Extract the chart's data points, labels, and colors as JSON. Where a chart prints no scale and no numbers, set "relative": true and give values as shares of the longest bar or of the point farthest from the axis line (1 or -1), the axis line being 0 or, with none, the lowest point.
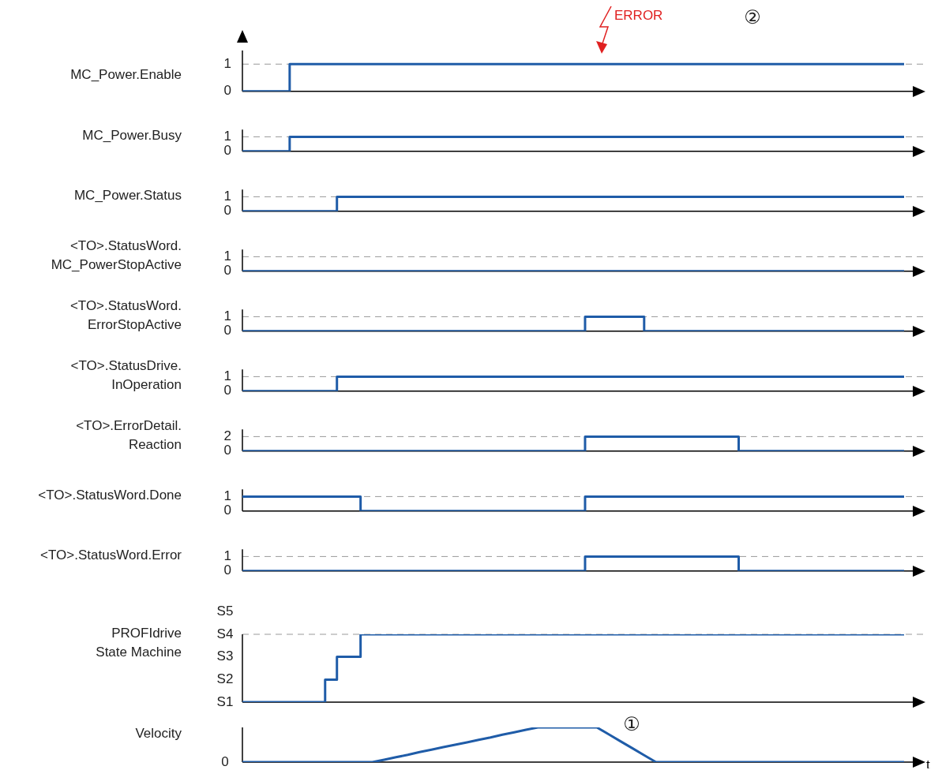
{
  "chart_data": [
    {
      "type": "step",
      "ylabel": "MC_Power.Enable",
      "categories": [
        null,
        null,
        null,
        null,
        null,
        null,
        null,
        null,
        null,
        null,
        null,
        null,
        null,
        null,
        null,
        null,
        null,
        null,
        null,
        null,
        null,
        null,
        null,
        null,
        null,
        null,
        null,
        null,
        null,
        null,
        null,
        null,
        null,
        null,
        null,
        null,
        null,
        null,
        null,
        null,
        null,
        null,
        null,
        null,
        null,
        null,
        null,
        null,
        null,
        null,
        null,
        null,
        null,
        null,
        null,
        null,
        null
      ],
      "values": [
        0,
        0,
        0,
        0,
        0,
        1,
        1,
        1,
        1,
        1,
        1,
        1,
        1,
        1,
        1,
        1,
        1,
        1,
        1,
        1,
        1,
        1,
        1,
        1,
        1,
        1,
        1,
        1,
        1,
        1,
        1,
        1,
        1,
        1,
        1,
        1,
        1,
        1,
        1,
        1,
        1,
        1,
        1,
        1,
        1,
        1,
        1,
        1,
        1,
        1,
        1,
        1,
        1,
        1,
        1,
        1,
        1
      ],
      "color": "#1f5ca8",
      "ylim": [
        0,
        1.5
      ],
      "yticks": [
        0,
        1
      ],
      "ref_lines": [
        {
          "axis": "y",
          "value": 1,
          "line_style": "dashed"
        }
      ],
      "annotations": [
        "ERROR",
        "②"
      ]
    },
    {
      "type": "step",
      "ylabel": "MC_Power.Busy",
      "categories": [
        null,
        null,
        null,
        null,
        null,
        null,
        null,
        null,
        null,
        null,
        null,
        null,
        null,
        null,
        null,
        null,
        null,
        null,
        null,
        null,
        null,
        null,
        null,
        null,
        null,
        null,
        null,
        null,
        null,
        null,
        null,
        null,
        null,
        null,
        null,
        null,
        null,
        null,
        null,
        null,
        null,
        null,
        null,
        null,
        null,
        null,
        null,
        null,
        null,
        null,
        null,
        null,
        null,
        null,
        null,
        null,
        null
      ],
      "values": [
        0,
        0,
        0,
        0,
        0,
        1,
        1,
        1,
        1,
        1,
        1,
        1,
        1,
        1,
        1,
        1,
        1,
        1,
        1,
        1,
        1,
        1,
        1,
        1,
        1,
        1,
        1,
        1,
        1,
        1,
        1,
        1,
        1,
        1,
        1,
        1,
        1,
        1,
        1,
        1,
        1,
        1,
        1,
        1,
        1,
        1,
        1,
        1,
        1,
        1,
        1,
        1,
        1,
        1,
        1,
        1,
        1
      ],
      "color": "#1f5ca8",
      "ylim": [
        0,
        1.5
      ],
      "yticks": [
        0,
        1
      ],
      "ref_lines": [
        {
          "axis": "y",
          "value": 1,
          "line_style": "dashed"
        }
      ]
    },
    {
      "type": "step",
      "ylabel": "MC_Power.Status",
      "categories": [
        null,
        null,
        null,
        null,
        null,
        null,
        null,
        null,
        null,
        null,
        null,
        null,
        null,
        null,
        null,
        null,
        null,
        null,
        null,
        null,
        null,
        null,
        null,
        null,
        null,
        null,
        null,
        null,
        null,
        null,
        null,
        null,
        null,
        null,
        null,
        null,
        null,
        null,
        null,
        null,
        null,
        null,
        null,
        null,
        null,
        null,
        null,
        null,
        null,
        null,
        null,
        null,
        null,
        null,
        null,
        null,
        null
      ],
      "values": [
        0,
        0,
        0,
        0,
        0,
        0,
        0,
        0,
        0,
        1,
        1,
        1,
        1,
        1,
        1,
        1,
        1,
        1,
        1,
        1,
        1,
        1,
        1,
        1,
        1,
        1,
        1,
        1,
        1,
        1,
        1,
        1,
        1,
        1,
        1,
        1,
        1,
        1,
        1,
        1,
        1,
        1,
        1,
        1,
        1,
        1,
        1,
        1,
        1,
        1,
        1,
        1,
        1,
        1,
        1,
        1,
        1
      ],
      "color": "#1f5ca8",
      "ylim": [
        0,
        1.5
      ],
      "yticks": [
        0,
        1
      ],
      "ref_lines": [
        {
          "axis": "y",
          "value": 1,
          "line_style": "dashed"
        }
      ]
    },
    {
      "type": "step",
      "ylabel": "<TO>.StatusWord.\nMC_PowerStopActive",
      "categories": [
        null,
        null,
        null,
        null,
        null,
        null,
        null,
        null,
        null,
        null,
        null,
        null,
        null,
        null,
        null,
        null,
        null,
        null,
        null,
        null,
        null,
        null,
        null,
        null,
        null,
        null,
        null,
        null,
        null,
        null,
        null,
        null,
        null,
        null,
        null,
        null,
        null,
        null,
        null,
        null,
        null,
        null,
        null,
        null,
        null,
        null,
        null,
        null,
        null,
        null,
        null,
        null,
        null,
        null,
        null,
        null,
        null
      ],
      "values": [
        0,
        0,
        0,
        0,
        0,
        0,
        0,
        0,
        0,
        0,
        0,
        0,
        0,
        0,
        0,
        0,
        0,
        0,
        0,
        0,
        0,
        0,
        0,
        0,
        0,
        0,
        0,
        0,
        0,
        0,
        0,
        0,
        0,
        0,
        0,
        0,
        0,
        0,
        0,
        0,
        0,
        0,
        0,
        0,
        0,
        0,
        0,
        0,
        0,
        0,
        0,
        0,
        0,
        0,
        0,
        0,
        0
      ],
      "color": "#1f5ca8",
      "ylim": [
        0,
        1.5
      ],
      "yticks": [
        0,
        1
      ],
      "ref_lines": [
        {
          "axis": "y",
          "value": 1,
          "line_style": "dashed"
        }
      ]
    },
    {
      "type": "step",
      "ylabel": "<TO>.StatusWord.\nErrorStopActive",
      "categories": [
        null,
        null,
        null,
        null,
        null,
        null,
        null,
        null,
        null,
        null,
        null,
        null,
        null,
        null,
        null,
        null,
        null,
        null,
        null,
        null,
        null,
        null,
        null,
        null,
        null,
        null,
        null,
        null,
        null,
        null,
        null,
        null,
        null,
        null,
        null,
        null,
        null,
        null,
        null,
        null,
        null,
        null,
        null,
        null,
        null,
        null,
        null,
        null,
        null,
        null,
        null,
        null,
        null,
        null,
        null,
        null,
        null
      ],
      "values": [
        0,
        0,
        0,
        0,
        0,
        0,
        0,
        0,
        0,
        0,
        0,
        0,
        0,
        0,
        0,
        0,
        0,
        0,
        0,
        0,
        0,
        0,
        0,
        0,
        0,
        0,
        0,
        0,
        0,
        0,
        1,
        1,
        1,
        1,
        1,
        0,
        0,
        0,
        0,
        0,
        0,
        0,
        0,
        0,
        0,
        0,
        0,
        0,
        0,
        0,
        0,
        0,
        0,
        0,
        0,
        0,
        0
      ],
      "color": "#1f5ca8",
      "ylim": [
        0,
        1.5
      ],
      "yticks": [
        0,
        1
      ],
      "ref_lines": [
        {
          "axis": "y",
          "value": 1,
          "line_style": "dashed"
        }
      ]
    },
    {
      "type": "step",
      "ylabel": "<TO>.StatusDrive.\nInOperation",
      "categories": [
        null,
        null,
        null,
        null,
        null,
        null,
        null,
        null,
        null,
        null,
        null,
        null,
        null,
        null,
        null,
        null,
        null,
        null,
        null,
        null,
        null,
        null,
        null,
        null,
        null,
        null,
        null,
        null,
        null,
        null,
        null,
        null,
        null,
        null,
        null,
        null,
        null,
        null,
        null,
        null,
        null,
        null,
        null,
        null,
        null,
        null,
        null,
        null,
        null,
        null,
        null,
        null,
        null,
        null,
        null,
        null,
        null
      ],
      "values": [
        0,
        0,
        0,
        0,
        0,
        0,
        0,
        0,
        0,
        1,
        1,
        1,
        1,
        1,
        1,
        1,
        1,
        1,
        1,
        1,
        1,
        1,
        1,
        1,
        1,
        1,
        1,
        1,
        1,
        1,
        1,
        1,
        1,
        1,
        1,
        1,
        1,
        1,
        1,
        1,
        1,
        1,
        1,
        1,
        1,
        1,
        1,
        1,
        1,
        1,
        1,
        1,
        1,
        1,
        1,
        1,
        1
      ],
      "color": "#1f5ca8",
      "ylim": [
        0,
        1.5
      ],
      "yticks": [
        0,
        1
      ],
      "ref_lines": [
        {
          "axis": "y",
          "value": 1,
          "line_style": "dashed"
        }
      ]
    },
    {
      "type": "step",
      "ylabel": "<TO>.ErrorDetail.\nReaction",
      "categories": [
        null,
        null,
        null,
        null,
        null,
        null,
        null,
        null,
        null,
        null,
        null,
        null,
        null,
        null,
        null,
        null,
        null,
        null,
        null,
        null,
        null,
        null,
        null,
        null,
        null,
        null,
        null,
        null,
        null,
        null,
        null,
        null,
        null,
        null,
        null,
        null,
        null,
        null,
        null,
        null,
        null,
        null,
        null,
        null,
        null,
        null,
        null,
        null,
        null,
        null,
        null,
        null,
        null,
        null,
        null,
        null,
        null
      ],
      "values": [
        0,
        0,
        0,
        0,
        0,
        0,
        0,
        0,
        0,
        0,
        0,
        0,
        0,
        0,
        0,
        0,
        0,
        0,
        0,
        0,
        0,
        0,
        0,
        0,
        0,
        0,
        0,
        0,
        0,
        0,
        2,
        2,
        2,
        2,
        2,
        2,
        2,
        2,
        2,
        2,
        2,
        2,
        2,
        0,
        0,
        0,
        0,
        0,
        0,
        0,
        0,
        0,
        0,
        0,
        0,
        0,
        0
      ],
      "color": "#1f5ca8",
      "ylim": [
        0,
        3
      ],
      "yticks": [
        0,
        2
      ],
      "ref_lines": [
        {
          "axis": "y",
          "value": 2,
          "line_style": "dashed"
        }
      ]
    },
    {
      "type": "step",
      "ylabel": "<TO>.StatusWord.Done",
      "categories": [
        null,
        null,
        null,
        null,
        null,
        null,
        null,
        null,
        null,
        null,
        null,
        null,
        null,
        null,
        null,
        null,
        null,
        null,
        null,
        null,
        null,
        null,
        null,
        null,
        null,
        null,
        null,
        null,
        null,
        null,
        null,
        null,
        null,
        null,
        null,
        null,
        null,
        null,
        null,
        null,
        null,
        null,
        null,
        null,
        null,
        null,
        null,
        null,
        null,
        null,
        null,
        null,
        null,
        null,
        null,
        null,
        null
      ],
      "values": [
        1,
        1,
        1,
        1,
        1,
        1,
        1,
        1,
        1,
        1,
        1,
        0,
        0,
        0,
        0,
        0,
        0,
        0,
        0,
        0,
        0,
        0,
        0,
        0,
        0,
        0,
        0,
        0,
        0,
        0,
        1,
        1,
        1,
        1,
        1,
        1,
        1,
        1,
        1,
        1,
        1,
        1,
        1,
        1,
        1,
        1,
        1,
        1,
        1,
        1,
        1,
        1,
        1,
        1,
        1,
        1,
        1
      ],
      "color": "#1f5ca8",
      "ylim": [
        0,
        1.5
      ],
      "yticks": [
        0,
        1
      ],
      "ref_lines": [
        {
          "axis": "y",
          "value": 1,
          "line_style": "dashed"
        }
      ]
    },
    {
      "type": "step",
      "ylabel": "<TO>.StatusWord.Error",
      "categories": [
        null,
        null,
        null,
        null,
        null,
        null,
        null,
        null,
        null,
        null,
        null,
        null,
        null,
        null,
        null,
        null,
        null,
        null,
        null,
        null,
        null,
        null,
        null,
        null,
        null,
        null,
        null,
        null,
        null,
        null,
        null,
        null,
        null,
        null,
        null,
        null,
        null,
        null,
        null,
        null,
        null,
        null,
        null,
        null,
        null,
        null,
        null,
        null,
        null,
        null,
        null,
        null,
        null,
        null,
        null,
        null,
        null
      ],
      "values": [
        0,
        0,
        0,
        0,
        0,
        0,
        0,
        0,
        0,
        0,
        0,
        0,
        0,
        0,
        0,
        0,
        0,
        0,
        0,
        0,
        0,
        0,
        0,
        0,
        0,
        0,
        0,
        0,
        0,
        0,
        1,
        1,
        1,
        1,
        1,
        1,
        1,
        1,
        1,
        1,
        1,
        1,
        1,
        0,
        0,
        0,
        0,
        0,
        0,
        0,
        0,
        0,
        0,
        0,
        0,
        0,
        0
      ],
      "color": "#1f5ca8",
      "ylim": [
        0,
        1.5
      ],
      "yticks": [
        0,
        1
      ],
      "ref_lines": [
        {
          "axis": "y",
          "value": 1,
          "line_style": "dashed"
        }
      ]
    },
    {
      "type": "step",
      "ylabel": "PROFIdrive\nState Machine",
      "categories": [
        null,
        null,
        null,
        null,
        null,
        null,
        null,
        null,
        null,
        null,
        null,
        null,
        null,
        null,
        null,
        null,
        null,
        null,
        null,
        null,
        null,
        null,
        null,
        null,
        null,
        null,
        null,
        null,
        null,
        null,
        null,
        null,
        null,
        null,
        null,
        null,
        null,
        null,
        null,
        null,
        null,
        null,
        null,
        null,
        null,
        null,
        null,
        null,
        null,
        null,
        null,
        null,
        null,
        null,
        null,
        null,
        null
      ],
      "values": [
        0,
        0,
        0,
        0,
        0,
        0,
        0,
        0,
        0.33,
        0.67,
        0.67,
        1,
        1,
        1,
        1,
        1,
        1,
        1,
        1,
        1,
        1,
        1,
        1,
        1,
        1,
        1,
        1,
        1,
        1,
        1,
        1,
        1,
        1,
        1,
        1,
        1,
        1,
        1,
        1,
        1,
        1,
        1,
        1,
        1,
        1,
        1,
        1,
        1,
        1,
        1,
        1,
        1,
        1,
        1,
        1,
        1,
        1
      ],
      "color": "#1f5ca8",
      "relative": true,
      "annotations": [
        "S1",
        "S2",
        "S3",
        "S4",
        "S5"
      ],
      "ref_lines": [
        {
          "axis": "y",
          "value": 1,
          "line_style": "dashed"
        }
      ]
    },
    {
      "type": "line",
      "ylabel": "Velocity",
      "xlabel": "t",
      "relative": true,
      "categories": [
        null,
        null,
        null,
        null,
        null,
        null,
        null,
        null,
        null,
        null,
        null,
        null,
        null,
        null,
        null,
        null,
        null,
        null,
        null,
        null,
        null,
        null,
        null,
        null,
        null,
        null,
        null,
        null,
        null,
        null,
        null,
        null,
        null,
        null,
        null,
        null,
        null,
        null,
        null,
        null,
        null,
        null,
        null,
        null,
        null,
        null,
        null,
        null,
        null,
        null,
        null,
        null,
        null,
        null,
        null,
        null,
        null
      ],
      "values": [
        0,
        0,
        0,
        0,
        0,
        0,
        0,
        0,
        0,
        0,
        0,
        0,
        0.07,
        0.14,
        0.21,
        0.29,
        0.36,
        0.43,
        0.5,
        0.57,
        0.64,
        0.71,
        0.79,
        0.86,
        0.93,
        1,
        1,
        1,
        1,
        1,
        1,
        0.8,
        0.6,
        0.4,
        0.2,
        0,
        0,
        0,
        0,
        0,
        0,
        0,
        0,
        0,
        0,
        0,
        0,
        0,
        0,
        0,
        0,
        0,
        0,
        0,
        0,
        0,
        0
      ],
      "color": "#1f5ca8",
      "annotations": [
        "①",
        "0"
      ]
    }
  ]
}
